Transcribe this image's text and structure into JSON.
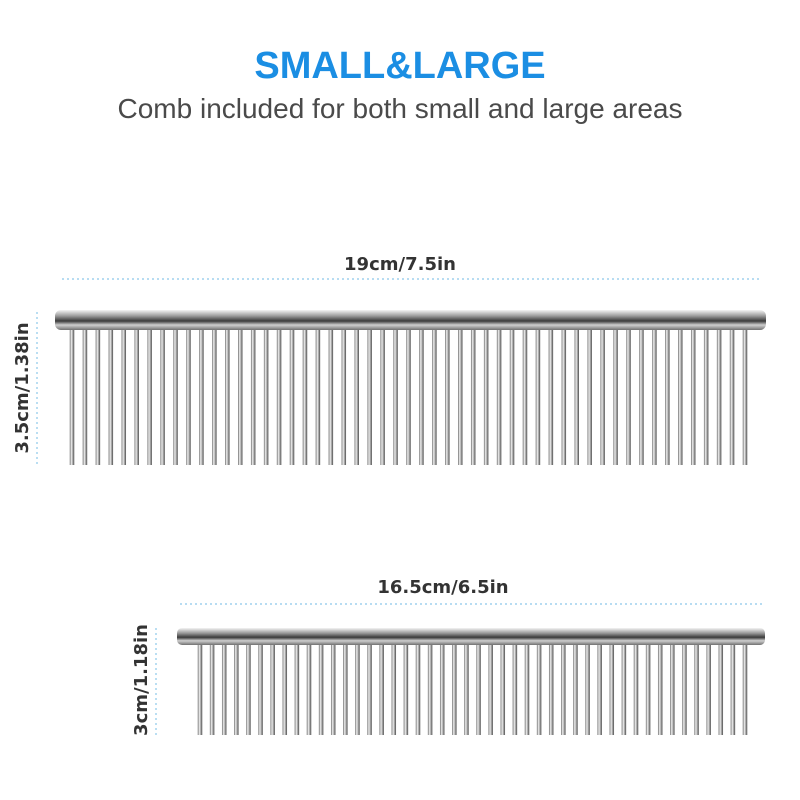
{
  "header": {
    "title": "SMALL&LARGE",
    "subtitle": "Comb included for both small and large areas"
  },
  "combs": [
    {
      "width_label": "19cm/7.5in",
      "height_label": "3.5cm/1.38in"
    },
    {
      "width_label": "16.5cm/6.5in",
      "height_label": "3cm/1.18in"
    }
  ]
}
